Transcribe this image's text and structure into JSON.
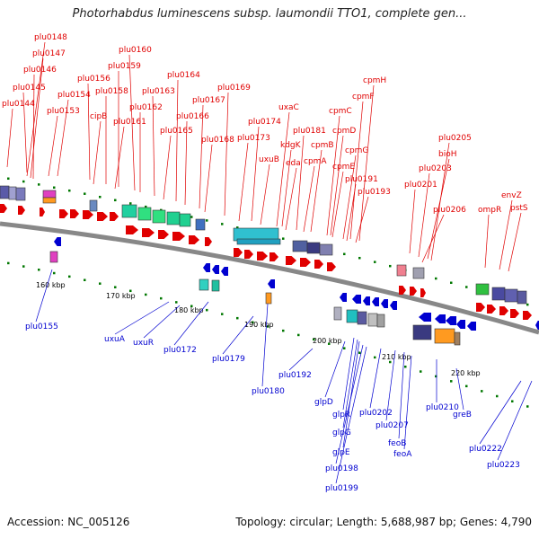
{
  "header": {
    "title": "Photorhabdus luminescens subsp. laumondii TTO1, complete gen..."
  },
  "footer": {
    "accession": "Accession: NC_005126",
    "summary": "Topology: circular; Length: 5,688,987 bp; Genes: 4,790"
  },
  "colors": {
    "forward_strand": "#e00000",
    "reverse_strand": "#0000d0",
    "backbone": "#888888",
    "tick": "#007700"
  },
  "scale_labels": [
    "160 kbp",
    "170 kbp",
    "180 kbp",
    "190 kbp",
    "200 kbp",
    "210 kbp",
    "220 kbp"
  ],
  "forward_genes": [
    "plu0148",
    "plu0147",
    "plu0146",
    "plu0145",
    "plu0144",
    "plu0154",
    "plu0153",
    "plu0156",
    "cipB",
    "plu0158",
    "plu0161",
    "plu0159",
    "plu0160",
    "plu0162",
    "plu0163",
    "plu0165",
    "plu0164",
    "plu0166",
    "plu0167",
    "plu0168",
    "plu0169",
    "plu0173",
    "plu0174",
    "uxuB",
    "uxaC",
    "kdgK",
    "eda",
    "plu0181",
    "cpmA",
    "cpmB",
    "cpmC",
    "cpmD",
    "cpmE",
    "cpmF",
    "cpmG",
    "cpmH",
    "plu0191",
    "plu0193",
    "plu0201",
    "plu0203",
    "bioH",
    "plu0205",
    "plu0206",
    "ompR",
    "envZ",
    "pstS"
  ],
  "reverse_genes": [
    "plu0155",
    "uxuA",
    "uxuR",
    "plu0172",
    "plu0179",
    "plu0180",
    "plu0192",
    "glpD",
    "glpR",
    "glpG",
    "glpE",
    "plu0198",
    "plu0199",
    "plu0202",
    "plu0207",
    "feoB",
    "feoA",
    "plu0210",
    "greB",
    "plu0222",
    "plu0223"
  ]
}
